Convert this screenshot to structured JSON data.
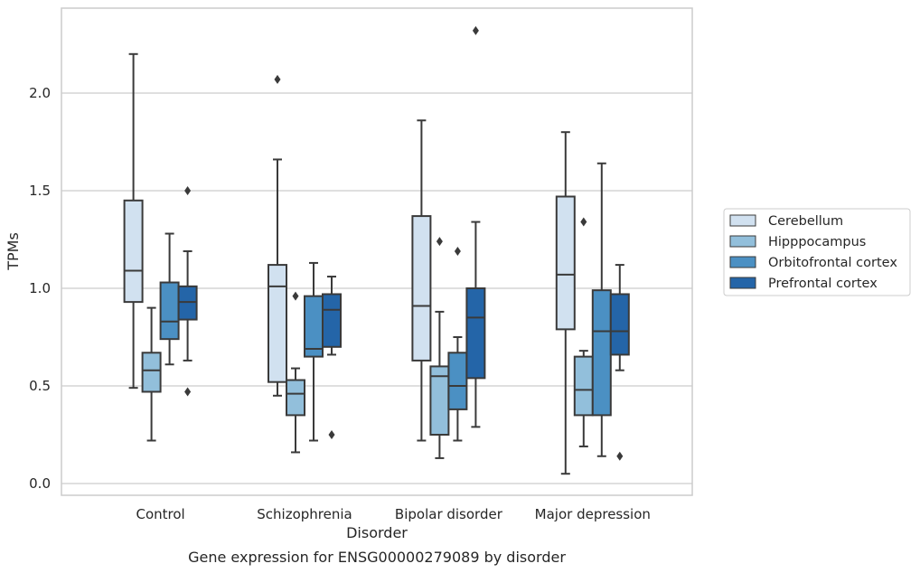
{
  "chart_data": {
    "type": "boxplot",
    "caption": "Gene expression for ENSG00000279089 by disorder",
    "xlabel": "Disorder",
    "ylabel": "TPMs",
    "ylim": [
      -0.06,
      2.45
    ],
    "yticks": [
      "0.0",
      "0.5",
      "1.0",
      "1.5",
      "2.0"
    ],
    "grid": true,
    "legend_position": "right",
    "categories": [
      "Control",
      "Schizophrenia",
      "Bipolar disorder",
      "Major depression"
    ],
    "series": [
      {
        "name": "Cerebellum",
        "color": "#d1e1f0",
        "boxes": [
          {
            "whislo": 0.49,
            "q1": 0.93,
            "med": 1.09,
            "q3": 1.45,
            "whishi": 2.2,
            "fliers": []
          },
          {
            "whislo": 0.45,
            "q1": 0.52,
            "med": 1.01,
            "q3": 1.12,
            "whishi": 1.66,
            "fliers": [
              2.07
            ]
          },
          {
            "whislo": 0.22,
            "q1": 0.63,
            "med": 0.91,
            "q3": 1.37,
            "whishi": 1.86,
            "fliers": []
          },
          {
            "whislo": 0.05,
            "q1": 0.79,
            "med": 1.07,
            "q3": 1.47,
            "whishi": 1.8,
            "fliers": []
          }
        ]
      },
      {
        "name": "Hipppocampus",
        "color": "#92bfdb",
        "boxes": [
          {
            "whislo": 0.22,
            "q1": 0.47,
            "med": 0.58,
            "q3": 0.67,
            "whishi": 0.9,
            "fliers": []
          },
          {
            "whislo": 0.16,
            "q1": 0.35,
            "med": 0.46,
            "q3": 0.53,
            "whishi": 0.59,
            "fliers": [
              0.96
            ]
          },
          {
            "whislo": 0.13,
            "q1": 0.25,
            "med": 0.55,
            "q3": 0.6,
            "whishi": 0.88,
            "fliers": [
              1.24
            ]
          },
          {
            "whislo": 0.19,
            "q1": 0.35,
            "med": 0.48,
            "q3": 0.65,
            "whishi": 0.68,
            "fliers": [
              1.34
            ]
          }
        ]
      },
      {
        "name": "Orbitofrontal cortex",
        "color": "#4b90c3",
        "boxes": [
          {
            "whislo": 0.61,
            "q1": 0.74,
            "med": 0.83,
            "q3": 1.03,
            "whishi": 1.28,
            "fliers": []
          },
          {
            "whislo": 0.22,
            "q1": 0.65,
            "med": 0.69,
            "q3": 0.96,
            "whishi": 1.13,
            "fliers": []
          },
          {
            "whislo": 0.22,
            "q1": 0.38,
            "med": 0.5,
            "q3": 0.67,
            "whishi": 0.75,
            "fliers": [
              1.19
            ]
          },
          {
            "whislo": 0.14,
            "q1": 0.35,
            "med": 0.78,
            "q3": 0.99,
            "whishi": 1.64,
            "fliers": []
          }
        ]
      },
      {
        "name": "Prefrontal cortex",
        "color": "#2465a8",
        "boxes": [
          {
            "whislo": 0.63,
            "q1": 0.84,
            "med": 0.93,
            "q3": 1.01,
            "whishi": 1.19,
            "fliers": [
              1.5,
              0.47
            ]
          },
          {
            "whislo": 0.66,
            "q1": 0.7,
            "med": 0.89,
            "q3": 0.97,
            "whishi": 1.06,
            "fliers": [
              0.25
            ]
          },
          {
            "whislo": 0.29,
            "q1": 0.54,
            "med": 0.85,
            "q3": 1.0,
            "whishi": 1.34,
            "fliers": [
              2.32
            ]
          },
          {
            "whislo": 0.58,
            "q1": 0.66,
            "med": 0.78,
            "q3": 0.97,
            "whishi": 1.12,
            "fliers": [
              0.14
            ]
          }
        ]
      }
    ]
  }
}
